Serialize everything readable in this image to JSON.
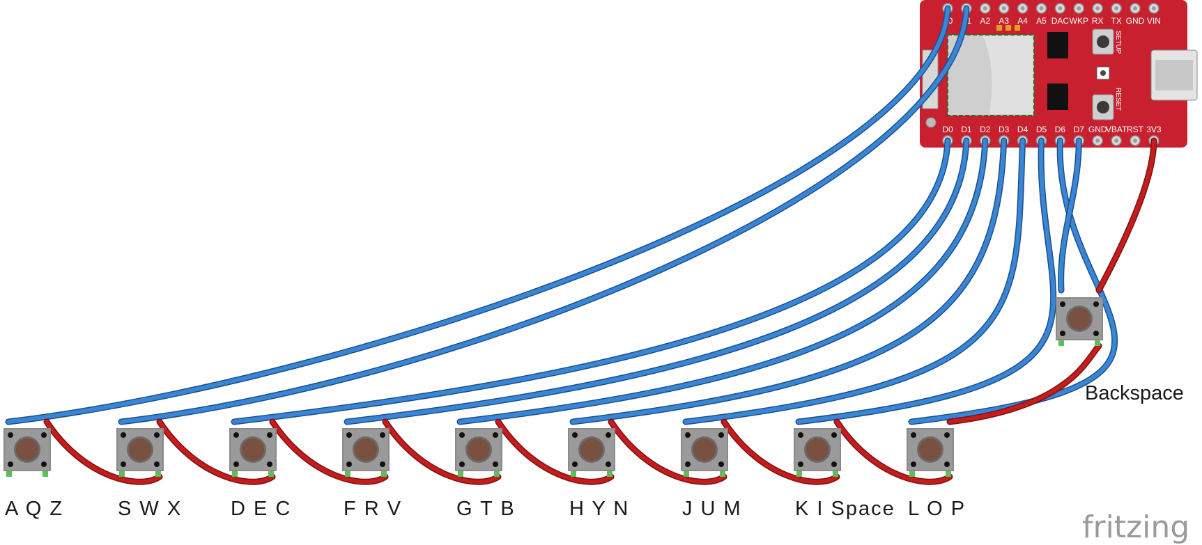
{
  "board": {
    "top_pins": [
      "A0",
      "A1",
      "A2",
      "A3",
      "A4",
      "A5",
      "DAC",
      "WKP",
      "RX",
      "TX",
      "GND",
      "VIN"
    ],
    "bottom_pins": [
      "D0",
      "D1",
      "D2",
      "D3",
      "D4",
      "D5",
      "D6",
      "D7",
      "GND",
      "VBAT",
      "RST",
      "3V3"
    ],
    "setup_label": "SETUP",
    "reset_label": "RESET"
  },
  "buttons": [
    {
      "label": "A Q Z",
      "pin": "A0"
    },
    {
      "label": "S W X",
      "pin": "A1"
    },
    {
      "label": "D E C",
      "pin": "D0"
    },
    {
      "label": "F R V",
      "pin": "D1"
    },
    {
      "label": "G T B",
      "pin": "D2"
    },
    {
      "label": "H Y N",
      "pin": "D3"
    },
    {
      "label": "J U M",
      "pin": "D4"
    },
    {
      "label": "K I Space",
      "pin": "D5"
    },
    {
      "label": "L O P",
      "pin": "D6"
    }
  ],
  "backspace": {
    "label": "Backspace",
    "pin": "D7",
    "power_pin": "3V3"
  },
  "logo": "fritzing",
  "colors": {
    "board": "#c8202f",
    "signal_wire": "#3a86d6",
    "power_wire": "#c41d1d",
    "button_body": "#9a9a9a"
  }
}
